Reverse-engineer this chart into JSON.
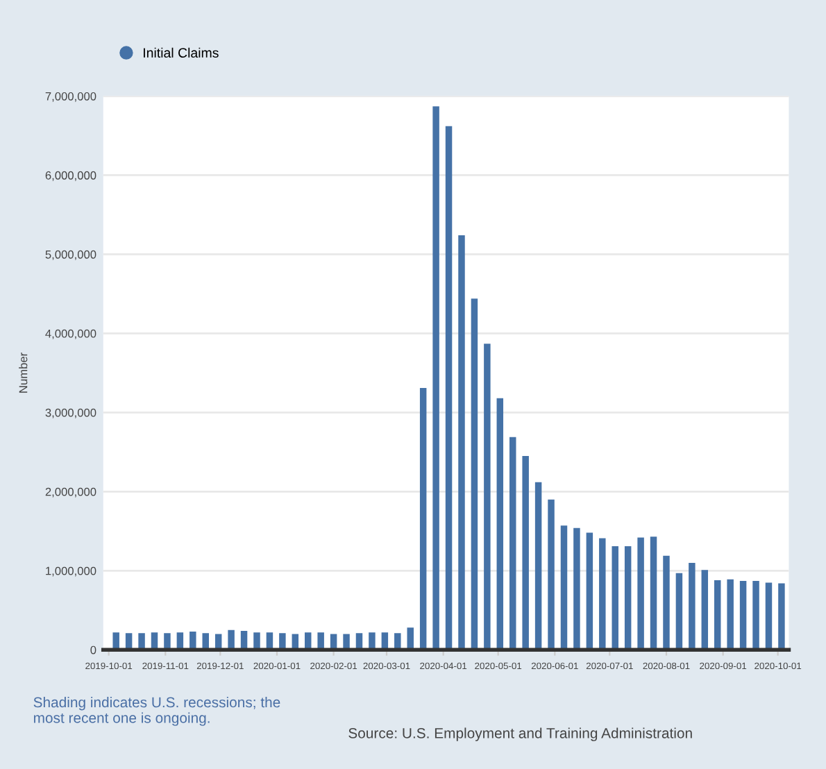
{
  "chart_data": {
    "type": "bar",
    "ylabel": "Number",
    "x": [
      "2019-10-05",
      "2019-10-12",
      "2019-10-19",
      "2019-10-26",
      "2019-11-02",
      "2019-11-09",
      "2019-11-16",
      "2019-11-23",
      "2019-11-30",
      "2019-12-07",
      "2019-12-14",
      "2019-12-21",
      "2019-12-28",
      "2020-01-04",
      "2020-01-11",
      "2020-01-18",
      "2020-01-25",
      "2020-02-01",
      "2020-02-08",
      "2020-02-15",
      "2020-02-22",
      "2020-02-29",
      "2020-03-07",
      "2020-03-14",
      "2020-03-21",
      "2020-03-28",
      "2020-04-04",
      "2020-04-11",
      "2020-04-18",
      "2020-04-25",
      "2020-05-02",
      "2020-05-09",
      "2020-05-16",
      "2020-05-23",
      "2020-05-30",
      "2020-06-06",
      "2020-06-13",
      "2020-06-20",
      "2020-06-27",
      "2020-07-04",
      "2020-07-11",
      "2020-07-18",
      "2020-07-25",
      "2020-08-01",
      "2020-08-08",
      "2020-08-15",
      "2020-08-22",
      "2020-08-29",
      "2020-09-05",
      "2020-09-12",
      "2020-09-19",
      "2020-09-26",
      "2020-10-03"
    ],
    "series": [
      {
        "name": "Initial Claims",
        "color": "#4572a7",
        "values": [
          220000,
          210000,
          210000,
          220000,
          210000,
          220000,
          230000,
          210000,
          200000,
          250000,
          240000,
          220000,
          220000,
          210000,
          200000,
          220000,
          220000,
          200000,
          200000,
          210000,
          220000,
          220000,
          210000,
          280000,
          3310000,
          6870000,
          6620000,
          5240000,
          4440000,
          3870000,
          3180000,
          2690000,
          2450000,
          2120000,
          1900000,
          1570000,
          1540000,
          1480000,
          1410000,
          1310000,
          1310000,
          1420000,
          1430000,
          1190000,
          970000,
          1100000,
          1010000,
          880000,
          890000,
          870000,
          870000,
          850000,
          840000
        ]
      }
    ],
    "xlim": [
      "2019-09-28",
      "2020-10-07"
    ],
    "xticks": [
      {
        "value": "2019-10-01",
        "label": "2019-10-01"
      },
      {
        "value": "2019-11-01",
        "label": "2019-11-01"
      },
      {
        "value": "2019-12-01",
        "label": "2019-12-01"
      },
      {
        "value": "2020-01-01",
        "label": "2020-01-01"
      },
      {
        "value": "2020-02-01",
        "label": "2020-02-01"
      },
      {
        "value": "2020-03-01",
        "label": "2020-03-01"
      },
      {
        "value": "2020-04-01",
        "label": "2020-04-01"
      },
      {
        "value": "2020-05-01",
        "label": "2020-05-01"
      },
      {
        "value": "2020-06-01",
        "label": "2020-06-01"
      },
      {
        "value": "2020-07-01",
        "label": "2020-07-01"
      },
      {
        "value": "2020-08-01",
        "label": "2020-08-01"
      },
      {
        "value": "2020-09-01",
        "label": "2020-09-01"
      },
      {
        "value": "2020-10-01",
        "label": "2020-10-01"
      }
    ],
    "ylim": [
      0,
      7000000
    ],
    "yticks": [
      {
        "value": 0,
        "label": "0"
      },
      {
        "value": 1000000,
        "label": "1,000,000"
      },
      {
        "value": 2000000,
        "label": "2,000,000"
      },
      {
        "value": 3000000,
        "label": "3,000,000"
      },
      {
        "value": 4000000,
        "label": "4,000,000"
      },
      {
        "value": 5000000,
        "label": "5,000,000"
      },
      {
        "value": 6000000,
        "label": "6,000,000"
      },
      {
        "value": 7000000,
        "label": "7,000,000"
      }
    ],
    "grid": "y",
    "legend": "top left",
    "annotations": [
      "Shading indicates U.S. recessions; the most recent one is ongoing.",
      "Source: U.S. Employment and Training Administration"
    ]
  }
}
